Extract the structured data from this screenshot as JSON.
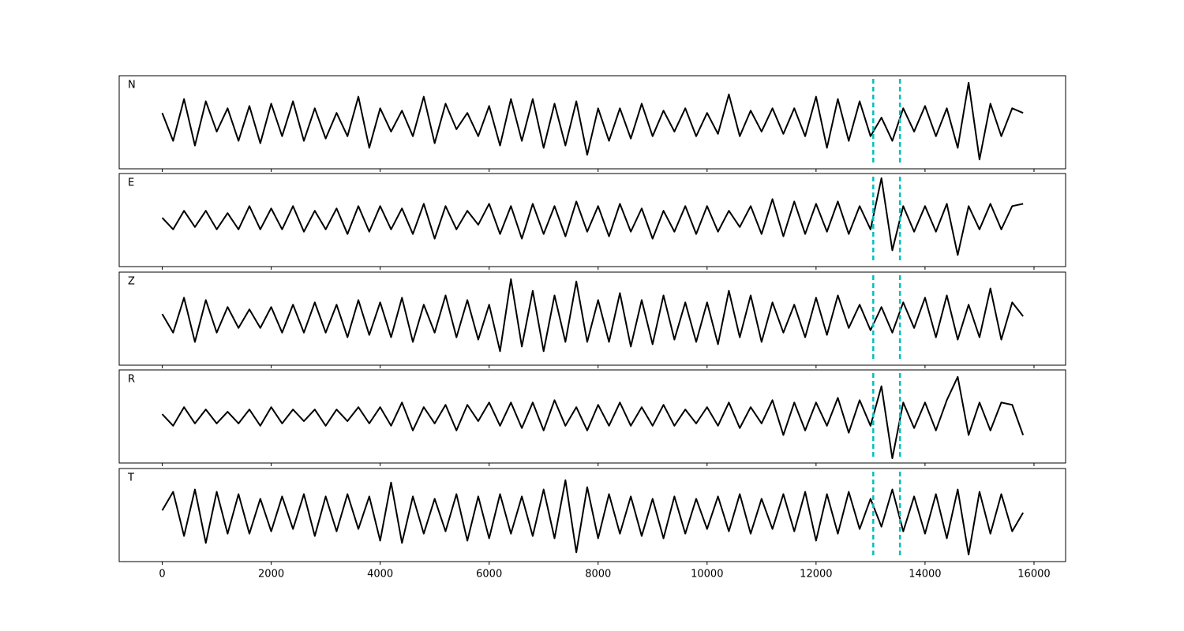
{
  "chart_data": [
    {
      "type": "line",
      "label": "N",
      "color": "#000000",
      "vlines": [
        13050,
        13540
      ],
      "vline_color": "#00bfbf",
      "xlim": [
        -790,
        16580
      ],
      "ylim": [
        -1,
        1
      ],
      "xticks": [
        0,
        2000,
        4000,
        6000,
        8000,
        10000,
        12000,
        14000,
        16000
      ],
      "x": [
        0,
        200,
        400,
        600,
        800,
        1000,
        1200,
        1400,
        1600,
        1800,
        2000,
        2200,
        2400,
        2600,
        2800,
        3000,
        3200,
        3400,
        3600,
        3800,
        4000,
        4200,
        4400,
        4600,
        4800,
        5000,
        5200,
        5400,
        5600,
        5800,
        6000,
        6200,
        6400,
        6600,
        6800,
        7000,
        7200,
        7400,
        7600,
        7800,
        8000,
        8200,
        8400,
        8600,
        8800,
        9000,
        9200,
        9400,
        9600,
        9800,
        10000,
        10200,
        10400,
        10600,
        10800,
        11000,
        11200,
        11400,
        11600,
        11800,
        12000,
        12200,
        12400,
        12600,
        12800,
        13000,
        13200,
        13400,
        13600,
        13800,
        14000,
        14200,
        14400,
        14600,
        14800,
        15000,
        15200,
        15400,
        15600,
        15800
      ],
      "values": [
        0.2,
        -0.4,
        0.5,
        -0.5,
        0.45,
        -0.2,
        0.3,
        -0.4,
        0.35,
        -0.45,
        0.4,
        -0.3,
        0.45,
        -0.4,
        0.3,
        -0.35,
        0.2,
        -0.3,
        0.55,
        -0.55,
        0.3,
        -0.2,
        0.25,
        -0.3,
        0.55,
        -0.45,
        0.4,
        -0.15,
        0.2,
        -0.3,
        0.35,
        -0.5,
        0.5,
        -0.4,
        0.5,
        -0.55,
        0.4,
        -0.5,
        0.45,
        -0.7,
        0.3,
        -0.4,
        0.3,
        -0.35,
        0.4,
        -0.3,
        0.25,
        -0.2,
        0.3,
        -0.3,
        0.2,
        -0.25,
        0.6,
        -0.3,
        0.25,
        -0.2,
        0.3,
        -0.25,
        0.3,
        -0.3,
        0.55,
        -0.55,
        0.5,
        -0.4,
        0.45,
        -0.3,
        0.1,
        -0.4,
        0.3,
        -0.2,
        0.35,
        -0.3,
        0.3,
        -0.55,
        0.85,
        -0.8,
        0.4,
        -0.3,
        0.3,
        0.2
      ]
    },
    {
      "type": "line",
      "label": "E",
      "color": "#000000",
      "vlines": [
        13050,
        13540
      ],
      "vline_color": "#00bfbf",
      "xlim": [
        -790,
        16580
      ],
      "ylim": [
        -1,
        1
      ],
      "xticks": [
        0,
        2000,
        4000,
        6000,
        8000,
        10000,
        12000,
        14000,
        16000
      ],
      "x": [
        0,
        200,
        400,
        600,
        800,
        1000,
        1200,
        1400,
        1600,
        1800,
        2000,
        2200,
        2400,
        2600,
        2800,
        3000,
        3200,
        3400,
        3600,
        3800,
        4000,
        4200,
        4400,
        4600,
        4800,
        5000,
        5200,
        5400,
        5600,
        5800,
        6000,
        6200,
        6400,
        6600,
        6800,
        7000,
        7200,
        7400,
        7600,
        7800,
        8000,
        8200,
        8400,
        8600,
        8800,
        9000,
        9200,
        9400,
        9600,
        9800,
        10000,
        10200,
        10400,
        10600,
        10800,
        11000,
        11200,
        11400,
        11600,
        11800,
        12000,
        12200,
        12400,
        12600,
        12800,
        13000,
        13200,
        13400,
        13600,
        13800,
        14000,
        14200,
        14400,
        14600,
        14800,
        15000,
        15200,
        15400,
        15600,
        15800
      ],
      "values": [
        0.05,
        -0.2,
        0.2,
        -0.15,
        0.2,
        -0.2,
        0.15,
        -0.2,
        0.3,
        -0.2,
        0.25,
        -0.2,
        0.3,
        -0.25,
        0.2,
        -0.2,
        0.25,
        -0.3,
        0.3,
        -0.25,
        0.3,
        -0.2,
        0.25,
        -0.3,
        0.35,
        -0.4,
        0.3,
        -0.2,
        0.2,
        -0.1,
        0.35,
        -0.3,
        0.3,
        -0.4,
        0.35,
        -0.3,
        0.3,
        -0.35,
        0.4,
        -0.25,
        0.3,
        -0.35,
        0.35,
        -0.25,
        0.25,
        -0.4,
        0.2,
        -0.25,
        0.3,
        -0.3,
        0.3,
        -0.25,
        0.2,
        -0.15,
        0.3,
        -0.3,
        0.45,
        -0.35,
        0.4,
        -0.3,
        0.35,
        -0.25,
        0.4,
        -0.3,
        0.3,
        -0.2,
        0.9,
        -0.65,
        0.3,
        -0.25,
        0.3,
        -0.25,
        0.35,
        -0.75,
        0.3,
        -0.2,
        0.35,
        -0.2,
        0.3,
        0.35
      ]
    },
    {
      "type": "line",
      "label": "Z",
      "color": "#000000",
      "vlines": [
        13050,
        13540
      ],
      "vline_color": "#00bfbf",
      "xlim": [
        -790,
        16580
      ],
      "ylim": [
        -1,
        1
      ],
      "xticks": [
        0,
        2000,
        4000,
        6000,
        8000,
        10000,
        12000,
        14000,
        16000
      ],
      "x": [
        0,
        200,
        400,
        600,
        800,
        1000,
        1200,
        1400,
        1600,
        1800,
        2000,
        2200,
        2400,
        2600,
        2800,
        3000,
        3200,
        3400,
        3600,
        3800,
        4000,
        4200,
        4400,
        4600,
        4800,
        5000,
        5200,
        5400,
        5600,
        5800,
        6000,
        6200,
        6400,
        6600,
        6800,
        7000,
        7200,
        7400,
        7600,
        7800,
        8000,
        8200,
        8400,
        8600,
        8800,
        9000,
        9200,
        9400,
        9600,
        9800,
        10000,
        10200,
        10400,
        10600,
        10800,
        11000,
        11200,
        11400,
        11600,
        11800,
        12000,
        12200,
        12400,
        12600,
        12800,
        13000,
        13200,
        13400,
        13600,
        13800,
        14000,
        14200,
        14400,
        14600,
        14800,
        15000,
        15200,
        15400,
        15600,
        15800
      ],
      "values": [
        0.1,
        -0.3,
        0.45,
        -0.5,
        0.4,
        -0.3,
        0.25,
        -0.2,
        0.2,
        -0.2,
        0.25,
        -0.3,
        0.3,
        -0.3,
        0.35,
        -0.3,
        0.3,
        -0.4,
        0.4,
        -0.35,
        0.35,
        -0.4,
        0.45,
        -0.5,
        0.3,
        -0.3,
        0.5,
        -0.4,
        0.4,
        -0.45,
        0.3,
        -0.7,
        0.85,
        -0.6,
        0.6,
        -0.7,
        0.5,
        -0.5,
        0.8,
        -0.5,
        0.4,
        -0.5,
        0.55,
        -0.6,
        0.4,
        -0.55,
        0.5,
        -0.45,
        0.35,
        -0.5,
        0.35,
        -0.55,
        0.6,
        -0.4,
        0.5,
        -0.5,
        0.35,
        -0.3,
        0.3,
        -0.4,
        0.45,
        -0.35,
        0.5,
        -0.2,
        0.3,
        -0.25,
        0.25,
        -0.3,
        0.35,
        -0.2,
        0.45,
        -0.4,
        0.5,
        -0.45,
        0.3,
        -0.4,
        0.65,
        -0.45,
        0.35,
        0.05
      ]
    },
    {
      "type": "line",
      "label": "R",
      "color": "#000000",
      "vlines": [
        13050,
        13540
      ],
      "vline_color": "#00bfbf",
      "xlim": [
        -790,
        16580
      ],
      "ylim": [
        -1,
        1
      ],
      "xticks": [
        0,
        2000,
        4000,
        6000,
        8000,
        10000,
        12000,
        14000,
        16000
      ],
      "x": [
        0,
        200,
        400,
        600,
        800,
        1000,
        1200,
        1400,
        1600,
        1800,
        2000,
        2200,
        2400,
        2600,
        2800,
        3000,
        3200,
        3400,
        3600,
        3800,
        4000,
        4200,
        4400,
        4600,
        4800,
        5000,
        5200,
        5400,
        5600,
        5800,
        6000,
        6200,
        6400,
        6600,
        6800,
        7000,
        7200,
        7400,
        7600,
        7800,
        8000,
        8200,
        8400,
        8600,
        8800,
        9000,
        9200,
        9400,
        9600,
        9800,
        10000,
        10200,
        10400,
        10600,
        10800,
        11000,
        11200,
        11400,
        11600,
        11800,
        12000,
        12200,
        12400,
        12600,
        12800,
        13000,
        13200,
        13400,
        13600,
        13800,
        14000,
        14200,
        14400,
        14600,
        14800,
        15000,
        15200,
        15400,
        15600,
        15800
      ],
      "values": [
        0.05,
        -0.2,
        0.2,
        -0.15,
        0.15,
        -0.15,
        0.1,
        -0.15,
        0.15,
        -0.2,
        0.2,
        -0.15,
        0.15,
        -0.1,
        0.15,
        -0.2,
        0.15,
        -0.1,
        0.2,
        -0.15,
        0.2,
        -0.2,
        0.3,
        -0.3,
        0.2,
        -0.15,
        0.25,
        -0.3,
        0.25,
        -0.1,
        0.3,
        -0.2,
        0.3,
        -0.25,
        0.3,
        -0.3,
        0.35,
        -0.2,
        0.2,
        -0.3,
        0.25,
        -0.2,
        0.3,
        -0.2,
        0.2,
        -0.2,
        0.25,
        -0.2,
        0.15,
        -0.15,
        0.2,
        -0.2,
        0.3,
        -0.25,
        0.2,
        -0.15,
        0.35,
        -0.4,
        0.3,
        -0.3,
        0.3,
        -0.2,
        0.4,
        -0.35,
        0.35,
        -0.2,
        0.65,
        -0.9,
        0.3,
        -0.25,
        0.3,
        -0.3,
        0.35,
        0.85,
        -0.4,
        0.3,
        -0.3,
        0.3,
        0.25,
        -0.4
      ]
    },
    {
      "type": "line",
      "label": "T",
      "color": "#000000",
      "vlines": [
        13050,
        13540
      ],
      "vline_color": "#00bfbf",
      "xlim": [
        -790,
        16580
      ],
      "ylim": [
        -1,
        1
      ],
      "xticks": [
        0,
        2000,
        4000,
        6000,
        8000,
        10000,
        12000,
        14000,
        16000
      ],
      "x": [
        0,
        200,
        400,
        600,
        800,
        1000,
        1200,
        1400,
        1600,
        1800,
        2000,
        2200,
        2400,
        2600,
        2800,
        3000,
        3200,
        3400,
        3600,
        3800,
        4000,
        4200,
        4400,
        4600,
        4800,
        5000,
        5200,
        5400,
        5600,
        5800,
        6000,
        6200,
        6400,
        6600,
        6800,
        7000,
        7200,
        7400,
        7600,
        7800,
        8000,
        8200,
        8400,
        8600,
        8800,
        9000,
        9200,
        9400,
        9600,
        9800,
        10000,
        10200,
        10400,
        10600,
        10800,
        11000,
        11200,
        11400,
        11600,
        11800,
        12000,
        12200,
        12400,
        12600,
        12800,
        13000,
        13200,
        13400,
        13600,
        13800,
        14000,
        14200,
        14400,
        14600,
        14800,
        15000,
        15200,
        15400,
        15600,
        15800
      ],
      "values": [
        0.1,
        0.5,
        -0.45,
        0.55,
        -0.6,
        0.5,
        -0.4,
        0.45,
        -0.4,
        0.35,
        -0.35,
        0.4,
        -0.3,
        0.45,
        -0.45,
        0.4,
        -0.35,
        0.45,
        -0.3,
        0.4,
        -0.55,
        0.7,
        -0.6,
        0.4,
        -0.4,
        0.35,
        -0.35,
        0.45,
        -0.55,
        0.4,
        -0.5,
        0.45,
        -0.4,
        0.4,
        -0.45,
        0.55,
        -0.5,
        0.75,
        -0.8,
        0.6,
        -0.5,
        0.45,
        -0.4,
        0.4,
        -0.45,
        0.35,
        -0.5,
        0.4,
        -0.4,
        0.35,
        -0.3,
        0.4,
        -0.35,
        0.45,
        -0.4,
        0.35,
        -0.3,
        0.45,
        -0.35,
        0.5,
        -0.55,
        0.45,
        -0.4,
        0.5,
        -0.3,
        0.35,
        -0.25,
        0.55,
        -0.35,
        0.4,
        -0.4,
        0.45,
        -0.5,
        0.55,
        -0.85,
        0.5,
        -0.4,
        0.45,
        -0.35,
        0.05
      ]
    }
  ]
}
